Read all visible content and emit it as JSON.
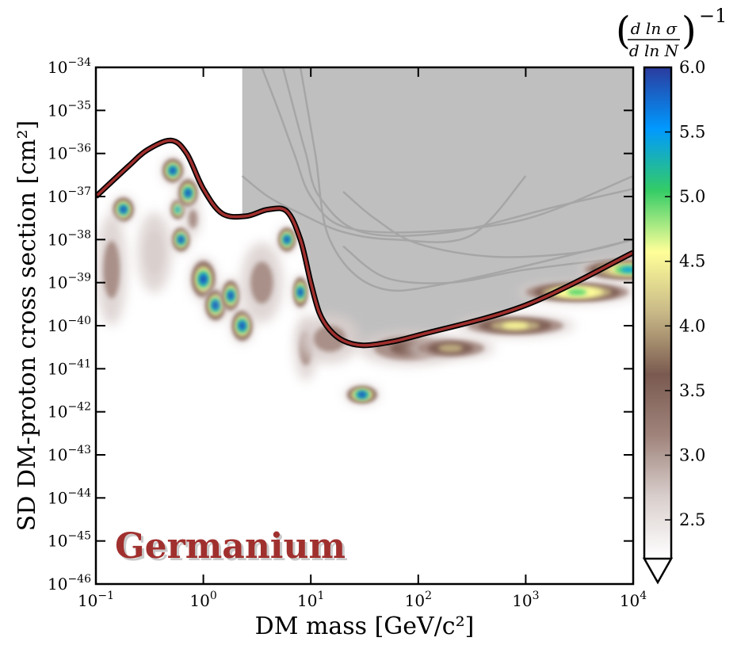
{
  "chart_data": {
    "type": "heatmap",
    "title": "",
    "material_label": "Germanium",
    "xlabel": "DM mass [GeV/c²]",
    "ylabel": "SD DM-proton cross section [cm²]",
    "x_scale": "log",
    "y_scale": "log",
    "xlim": [
      0.1,
      10000
    ],
    "ylim": [
      1e-46,
      1e-34
    ],
    "x_ticks": [
      {
        "value": 0.1,
        "base": "10",
        "exp": "−1"
      },
      {
        "value": 1,
        "base": "10",
        "exp": "0"
      },
      {
        "value": 10,
        "base": "10",
        "exp": "1"
      },
      {
        "value": 100,
        "base": "10",
        "exp": "2"
      },
      {
        "value": 1000,
        "base": "10",
        "exp": "3"
      },
      {
        "value": 10000,
        "base": "10",
        "exp": "4"
      }
    ],
    "y_ticks": [
      {
        "value": 1e-34,
        "base": "10",
        "exp": "−34"
      },
      {
        "value": 1e-35,
        "base": "10",
        "exp": "−35"
      },
      {
        "value": 1e-36,
        "base": "10",
        "exp": "−36"
      },
      {
        "value": 1e-37,
        "base": "10",
        "exp": "−37"
      },
      {
        "value": 1e-38,
        "base": "10",
        "exp": "−38"
      },
      {
        "value": 1e-39,
        "base": "10",
        "exp": "−39"
      },
      {
        "value": 1e-40,
        "base": "10",
        "exp": "−40"
      },
      {
        "value": 1e-41,
        "base": "10",
        "exp": "−41"
      },
      {
        "value": 1e-42,
        "base": "10",
        "exp": "−42"
      },
      {
        "value": 1e-43,
        "base": "10",
        "exp": "−43"
      },
      {
        "value": 1e-44,
        "base": "10",
        "exp": "−44"
      },
      {
        "value": 1e-45,
        "base": "10",
        "exp": "−45"
      },
      {
        "value": 1e-46,
        "base": "10",
        "exp": "−46"
      }
    ],
    "colorbar": {
      "label": "(d ln σ / d ln N)⁻¹",
      "range": [
        2.2,
        6.0
      ],
      "ticks": [
        "2.5",
        "3.0",
        "3.5",
        "4.0",
        "4.5",
        "5.0",
        "5.5",
        "6.0"
      ],
      "extend": "min",
      "colors": [
        "#ffffff",
        "#d9cfcd",
        "#a0847c",
        "#7a5a50",
        "#c8b887",
        "#ffff99",
        "#33cc66",
        "#0099ff",
        "#2b3b9e"
      ]
    },
    "limit_curve": {
      "color": "#a0302e",
      "points": [
        [
          0.1,
          1e-37
        ],
        [
          0.2,
          5e-37
        ],
        [
          0.3,
          1.2e-36
        ],
        [
          0.5,
          2e-36
        ],
        [
          0.7,
          1e-36
        ],
        [
          1.0,
          1.5e-37
        ],
        [
          1.5,
          4e-38
        ],
        [
          2.5,
          3.5e-38
        ],
        [
          4.0,
          5e-38
        ],
        [
          6.0,
          4.5e-38
        ],
        [
          8.0,
          1e-38
        ],
        [
          10.0,
          1e-39
        ],
        [
          12.0,
          2e-40
        ],
        [
          15.0,
          8e-41
        ],
        [
          20.0,
          4.5e-41
        ],
        [
          30.0,
          3.5e-41
        ],
        [
          50.0,
          4e-41
        ],
        [
          100.0,
          6e-41
        ],
        [
          1000.0,
          3e-40
        ],
        [
          10000.0,
          5e-39
        ]
      ]
    },
    "excluded_region": {
      "color": "#bfbfbf",
      "x_start": 2.3
    },
    "existing_limits": [
      {
        "points": [
          [
            2.3,
            3e-37
          ],
          [
            4.0,
            1e-37
          ],
          [
            8.0,
            4e-38
          ],
          [
            20.0,
            1.5e-38
          ],
          [
            60.0,
            1e-38
          ],
          [
            300.0,
            1.2e-38
          ],
          [
            1000.0,
            3e-37
          ]
        ]
      },
      {
        "points": [
          [
            3.5,
            1e-34
          ],
          [
            5.0,
            1e-35
          ],
          [
            7.0,
            1e-36
          ],
          [
            10.0,
            1e-37
          ],
          [
            20.0,
            2e-38
          ],
          [
            100.0,
            1.5e-38
          ],
          [
            1000.0,
            3e-38
          ],
          [
            10000.0,
            3e-37
          ]
        ]
      },
      {
        "points": [
          [
            5.5,
            1e-34
          ],
          [
            7.0,
            1e-35
          ],
          [
            9.0,
            1e-36
          ],
          [
            12.0,
            1e-37
          ],
          [
            30.0,
            1.5e-38
          ],
          [
            200.0,
            1.5e-38
          ],
          [
            2000.0,
            6e-38
          ],
          [
            10000.0,
            1.5e-37
          ]
        ]
      },
      {
        "points": [
          [
            8.0,
            1e-34
          ],
          [
            11.0,
            1e-36
          ],
          [
            15.0,
            1e-38
          ],
          [
            40.0,
            8e-40
          ],
          [
            200.0,
            1e-39
          ],
          [
            10000.0,
            1e-38
          ]
        ]
      },
      {
        "points": [
          [
            20.0,
            1.3e-37
          ],
          [
            40.0,
            3e-38
          ],
          [
            100.0,
            8e-39
          ],
          [
            500.0,
            4e-39
          ],
          [
            3000.0,
            5e-39
          ],
          [
            10000.0,
            1e-38
          ]
        ]
      },
      {
        "points": [
          [
            20.0,
            7e-39
          ],
          [
            50.0,
            1.3e-39
          ],
          [
            200.0,
            1e-39
          ],
          [
            1000.0,
            2e-39
          ],
          [
            10000.0,
            4e-39
          ]
        ]
      }
    ],
    "hotspots": [
      {
        "x": 0.18,
        "y": 5e-38,
        "level": 6.0,
        "sx": 0.05,
        "sy": 0.15
      },
      {
        "x": 0.14,
        "y": 2e-39,
        "level": 3.0,
        "sx": 0.07,
        "sy": 0.7
      },
      {
        "x": 0.35,
        "y": 5e-39,
        "level": 2.9,
        "sx": 0.08,
        "sy": 0.5
      },
      {
        "x": 0.52,
        "y": 4e-37,
        "level": 6.0,
        "sx": 0.05,
        "sy": 0.15
      },
      {
        "x": 0.58,
        "y": 5e-38,
        "level": 5.3,
        "sx": 0.03,
        "sy": 0.12
      },
      {
        "x": 0.62,
        "y": 1e-38,
        "level": 6.0,
        "sx": 0.04,
        "sy": 0.15
      },
      {
        "x": 0.72,
        "y": 1.2e-37,
        "level": 6.0,
        "sx": 0.045,
        "sy": 0.18
      },
      {
        "x": 0.8,
        "y": 3e-38,
        "level": 3.3,
        "sx": 0.03,
        "sy": 0.2
      },
      {
        "x": 1.0,
        "y": 1.2e-39,
        "level": 6.0,
        "sx": 0.06,
        "sy": 0.25
      },
      {
        "x": 1.3,
        "y": 3e-40,
        "level": 6.0,
        "sx": 0.05,
        "sy": 0.2
      },
      {
        "x": 1.8,
        "y": 5e-40,
        "level": 5.8,
        "sx": 0.04,
        "sy": 0.2
      },
      {
        "x": 2.3,
        "y": 1e-40,
        "level": 6.0,
        "sx": 0.05,
        "sy": 0.2
      },
      {
        "x": 3.5,
        "y": 1e-39,
        "level": 3.0,
        "sx": 0.1,
        "sy": 0.5
      },
      {
        "x": 6.0,
        "y": 1e-38,
        "level": 6.0,
        "sx": 0.04,
        "sy": 0.15
      },
      {
        "x": 8.0,
        "y": 6e-40,
        "level": 6.0,
        "sx": 0.03,
        "sy": 0.2
      },
      {
        "x": 9.0,
        "y": 3e-41,
        "level": 3.3,
        "sx": 0.05,
        "sy": 0.4
      },
      {
        "x": 15.0,
        "y": 5e-41,
        "level": 3.0,
        "sx": 0.15,
        "sy": 0.3
      },
      {
        "x": 30.0,
        "y": 2.5e-42,
        "level": 6.0,
        "sx": 0.08,
        "sy": 0.1
      },
      {
        "x": 80.0,
        "y": 3e-41,
        "level": 3.4,
        "sx": 0.25,
        "sy": 0.2
      },
      {
        "x": 200.0,
        "y": 3e-41,
        "level": 4.0,
        "sx": 0.22,
        "sy": 0.12
      },
      {
        "x": 800.0,
        "y": 1e-40,
        "level": 4.6,
        "sx": 0.3,
        "sy": 0.12
      },
      {
        "x": 3000.0,
        "y": 6e-40,
        "level": 5.2,
        "sx": 0.3,
        "sy": 0.12
      },
      {
        "x": 9000.0,
        "y": 2e-39,
        "level": 5.6,
        "sx": 0.25,
        "sy": 0.12
      }
    ]
  }
}
